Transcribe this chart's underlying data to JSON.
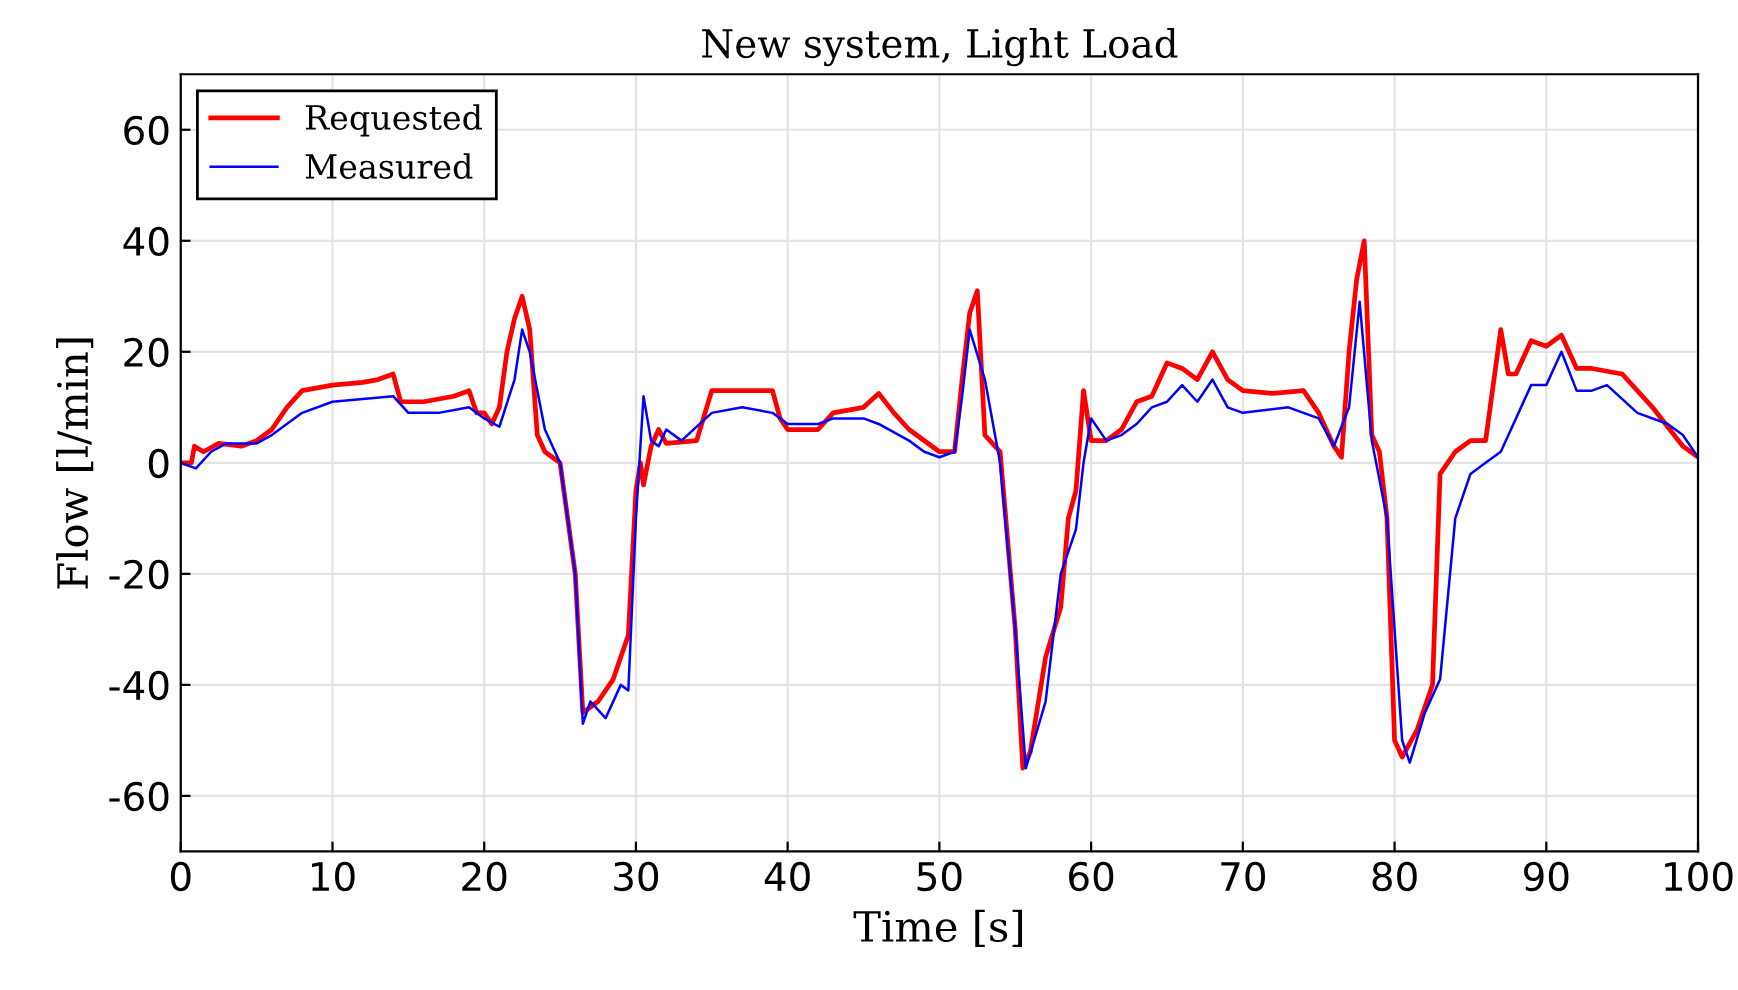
{
  "chart_data": {
    "type": "line",
    "title": "New system, Light Load",
    "xlabel": "Time [s]",
    "ylabel": "Flow [l/min]",
    "xlim": [
      0,
      100
    ],
    "ylim": [
      -70,
      70
    ],
    "xticks": [
      0,
      10,
      20,
      30,
      40,
      50,
      60,
      70,
      80,
      90,
      100
    ],
    "yticks": [
      -60,
      -40,
      -20,
      0,
      20,
      40,
      60
    ],
    "grid": true,
    "legend": "top left",
    "line_style": "solid",
    "marker": "none",
    "series": [
      {
        "name": "Requested",
        "color": "#ff0000",
        "x": [
          0,
          0.7,
          0.9,
          1.5,
          2.5,
          4,
          5,
          6,
          7,
          8,
          10,
          12,
          13,
          14,
          14.5,
          16,
          18,
          19,
          19.5,
          20,
          20.5,
          21,
          21.5,
          22,
          22.5,
          23,
          23.5,
          24,
          25,
          26,
          26.5,
          27.5,
          28.5,
          29.5,
          30,
          30.3,
          30.5,
          31,
          31.5,
          32,
          34,
          35,
          37,
          39,
          39.5,
          40,
          42,
          43,
          45,
          46,
          47,
          48,
          50,
          51,
          51.5,
          52,
          52.5,
          53,
          54,
          55,
          55.5,
          56,
          57,
          58,
          58.5,
          59,
          59.5,
          60,
          61,
          62,
          63,
          64,
          65,
          66,
          67,
          68,
          69,
          70,
          72,
          74,
          75,
          76,
          76.5,
          77,
          77.5,
          78,
          78.5,
          79,
          79.5,
          80,
          80.5,
          81.5,
          82.5,
          83,
          83.5,
          84,
          85,
          86,
          87,
          87.5,
          88,
          89,
          90,
          91,
          92,
          93,
          95,
          97,
          99,
          100
        ],
        "values": [
          0,
          0,
          3,
          2,
          3.5,
          3,
          4,
          6,
          10,
          13,
          14,
          14.5,
          15,
          16,
          11,
          11,
          12,
          13,
          9,
          9,
          7,
          10,
          20,
          26,
          30,
          24,
          5,
          2,
          0,
          -20,
          -45,
          -43,
          -39,
          -31,
          -5,
          0,
          -4,
          3,
          6,
          3.5,
          4,
          13,
          13,
          13,
          8,
          6,
          6,
          9,
          10,
          12.5,
          9,
          6,
          2,
          2,
          15,
          27,
          31,
          5,
          2,
          -30,
          -55,
          -52,
          -35,
          -26,
          -10,
          -5,
          13,
          4,
          4,
          6,
          11,
          12,
          18,
          17,
          15,
          20,
          15,
          13,
          12.5,
          13,
          9,
          3,
          1,
          20,
          33,
          40,
          5,
          2,
          -10,
          -50,
          -53,
          -48,
          -40,
          -2,
          0,
          2,
          4,
          4,
          24,
          16,
          16,
          22,
          21,
          23,
          17,
          17,
          16,
          10,
          3,
          1
        ]
      },
      {
        "name": "Measured",
        "color": "#0000ff",
        "x": [
          0,
          1,
          2,
          3,
          5,
          6,
          8,
          10,
          12,
          14,
          15,
          17,
          19,
          20,
          21,
          22,
          22.5,
          23,
          24,
          25,
          26,
          26.5,
          27,
          28,
          29,
          29.5,
          30,
          30.5,
          31,
          31.5,
          32,
          33,
          35,
          37,
          39,
          40,
          42,
          43,
          45,
          46,
          48,
          49,
          50,
          51,
          51.5,
          52,
          53,
          54,
          55,
          55.7,
          57,
          58,
          59,
          59.5,
          60,
          61,
          62,
          63,
          64,
          65,
          66,
          67,
          68,
          69,
          70,
          73,
          75,
          76,
          77,
          77.7,
          78.5,
          79.5,
          80.5,
          81,
          82,
          83,
          84,
          85,
          86,
          87,
          88,
          89,
          90,
          91,
          92,
          93,
          94,
          96,
          98,
          99,
          100
        ],
        "values": [
          0,
          -1,
          2,
          3.5,
          3.5,
          5,
          9,
          11,
          11.5,
          12,
          9,
          9,
          10,
          8,
          6.5,
          15,
          24,
          20,
          6,
          0,
          -20,
          -47,
          -43,
          -46,
          -40,
          -41,
          -10,
          12,
          4,
          3,
          6,
          4,
          9,
          10,
          9,
          7,
          7,
          8,
          8,
          7,
          4,
          2,
          1,
          2,
          12,
          24,
          15,
          0,
          -30,
          -55,
          -43,
          -20,
          -12,
          0,
          8,
          4,
          5,
          7,
          10,
          11,
          14,
          11,
          15,
          10,
          9,
          10,
          8,
          3,
          10,
          29,
          4,
          -10,
          -50,
          -54,
          -45,
          -39,
          -10,
          -2,
          0,
          2,
          8,
          14,
          14,
          20,
          13,
          13,
          14,
          9,
          7,
          5,
          1
        ]
      }
    ]
  }
}
